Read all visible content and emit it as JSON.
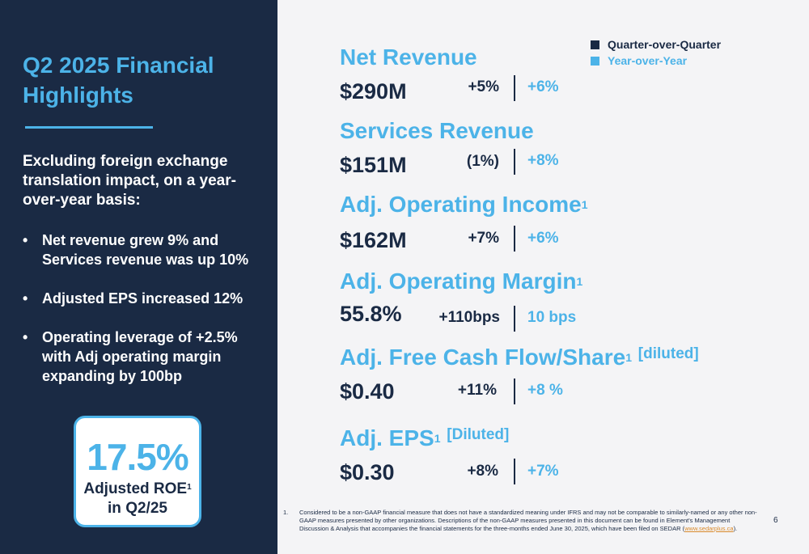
{
  "left": {
    "title": "Q2 2025 Financial Highlights",
    "intro": "Excluding foreign exchange translation impact, on a year-over-year basis:",
    "bullets": [
      "Net revenue grew 9% and Services revenue was up 10%",
      "Adjusted EPS increased 12%",
      "Operating leverage of +2.5% with Adj operating margin expanding by 100bp"
    ],
    "bullet_glyph": "•",
    "roe": {
      "value": "17.5%",
      "label": "Adjusted ROE",
      "sup": "1",
      "period": "in Q2/25"
    }
  },
  "legend": {
    "qoq": {
      "label": "Quarter-over-Quarter",
      "color": "#1a2a44"
    },
    "yoy": {
      "label": "Year-over-Year",
      "color": "#4cb3e8"
    }
  },
  "metrics": [
    {
      "title": "Net Revenue",
      "sup": "",
      "qualifier": "",
      "value": "$290M",
      "qoq": "+5%",
      "yoy": "+6%"
    },
    {
      "title": "Services Revenue",
      "sup": "",
      "qualifier": "",
      "value": "$151M",
      "qoq": "(1%)",
      "yoy": "+8%"
    },
    {
      "title": "Adj. Operating Income",
      "sup": "1",
      "qualifier": "",
      "value": "$162M",
      "qoq": "+7%",
      "yoy": "+6%"
    },
    {
      "title": "Adj. Operating Margin",
      "sup": "1",
      "qualifier": "",
      "value": "55.8%",
      "qoq": "+110bps",
      "yoy": "10 bps"
    },
    {
      "title": "Adj. Free Cash Flow/Share",
      "sup": "1",
      "qualifier": "[diluted]",
      "value": "$0.40",
      "qoq": "+11%",
      "yoy": "+8 %"
    },
    {
      "title": "Adj. EPS",
      "sup": "1",
      "qualifier": "[Diluted]",
      "value": "$0.30",
      "qoq": "+8%",
      "yoy": "+7%"
    }
  ],
  "footnote": {
    "number": "1.",
    "text": "Considered to be a non-GAAP financial measure that does not have a standardized meaning under IFRS and may not be comparable to similarly-named or any other non-GAAP measures presented by other organizations. Descriptions of the non-GAAP measures presented in this document can be found in Element's Management Discussion & Analysis that accompanies the financial statements for the three-months ended June 30, 2025, which have been filed on SEDAR (",
    "link": "www.sedarplus.ca",
    "text_end": ")."
  },
  "page_number": "6"
}
